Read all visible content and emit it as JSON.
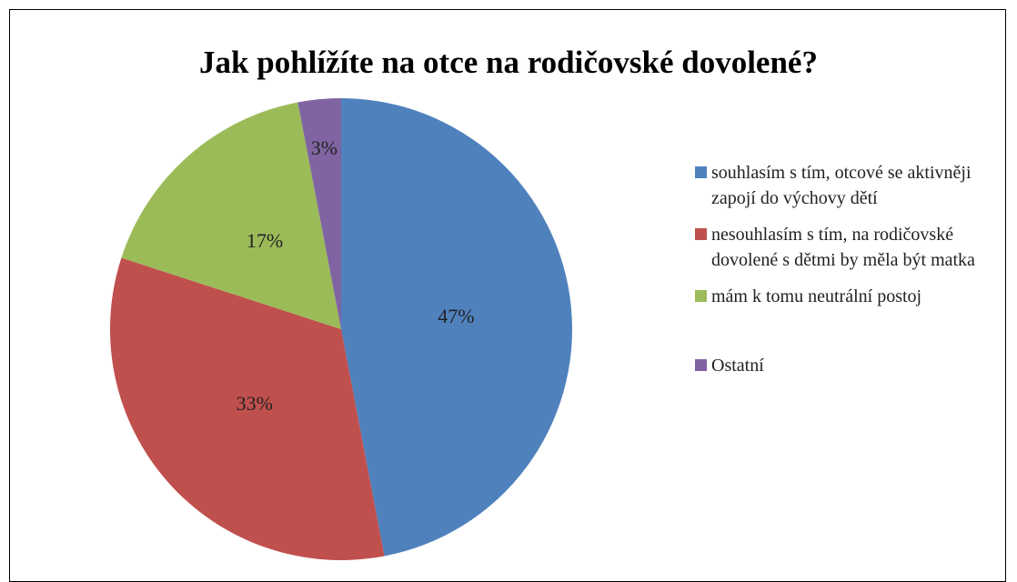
{
  "chart_data": {
    "type": "pie",
    "title": "Jak pohlížíte na otce na rodičovské dovolené?",
    "categories": [
      "souhlasím s tím, otcové se aktivněji zapojí do výchovy dětí",
      "nesouhlasím s tím, na rodičovské dovolené s dětmi by měla být matka",
      "mám k tomu neutrální postoj",
      "Ostatní"
    ],
    "values": [
      47,
      33,
      17,
      3
    ],
    "value_labels": [
      "47%",
      "33%",
      "17%",
      "3%"
    ],
    "colors": [
      "#4f81bd",
      "#c0504d",
      "#9bbb59",
      "#8064a2"
    ],
    "legend": "right"
  }
}
